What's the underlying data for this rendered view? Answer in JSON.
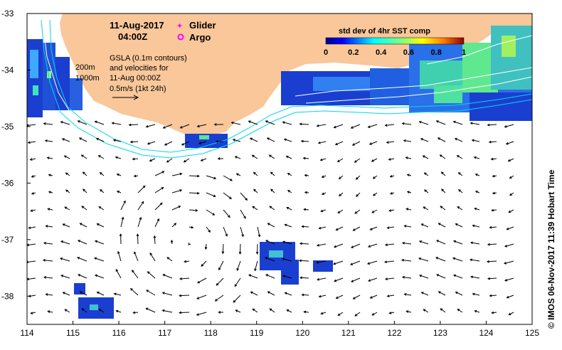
{
  "header": {
    "date": "11-Aug-2017",
    "time": "04:00Z",
    "legend": [
      {
        "label": "Glider",
        "color": "#ff00ff",
        "marker": "star"
      },
      {
        "label": "Argo",
        "color": "#ff00ff",
        "marker": "ring"
      }
    ]
  },
  "annotations": {
    "contour_200": "200m",
    "contour_1000": "1000m",
    "gsla_lines": [
      "GSLA (0.1m contours)",
      "and velocities for",
      "11-Aug 00:00Z",
      "0.5m/s (1kt 24h)"
    ]
  },
  "colorbar": {
    "title": "std dev of 4hr SST comp",
    "ticks": [
      "0",
      "0.2",
      "0.4",
      "0.6",
      "0.8",
      "1"
    ],
    "range": [
      0,
      1
    ]
  },
  "credit": "© IMOS 06-Nov-2017 11:39 Hobart Time",
  "axes": {
    "x_ticks": [
      "114",
      "115",
      "116",
      "117",
      "118",
      "119",
      "120",
      "121",
      "122",
      "123",
      "124",
      "125"
    ],
    "y_ticks": [
      "-33",
      "-34",
      "-35",
      "-36",
      "-37",
      "-38"
    ],
    "lon_range": [
      114,
      125
    ],
    "lat_range": [
      -38.5,
      -33
    ]
  },
  "colors": {
    "land": "#f9c79a",
    "isobath": "#00d8e8",
    "arrow": "#000000",
    "contour": "#ffffff"
  }
}
